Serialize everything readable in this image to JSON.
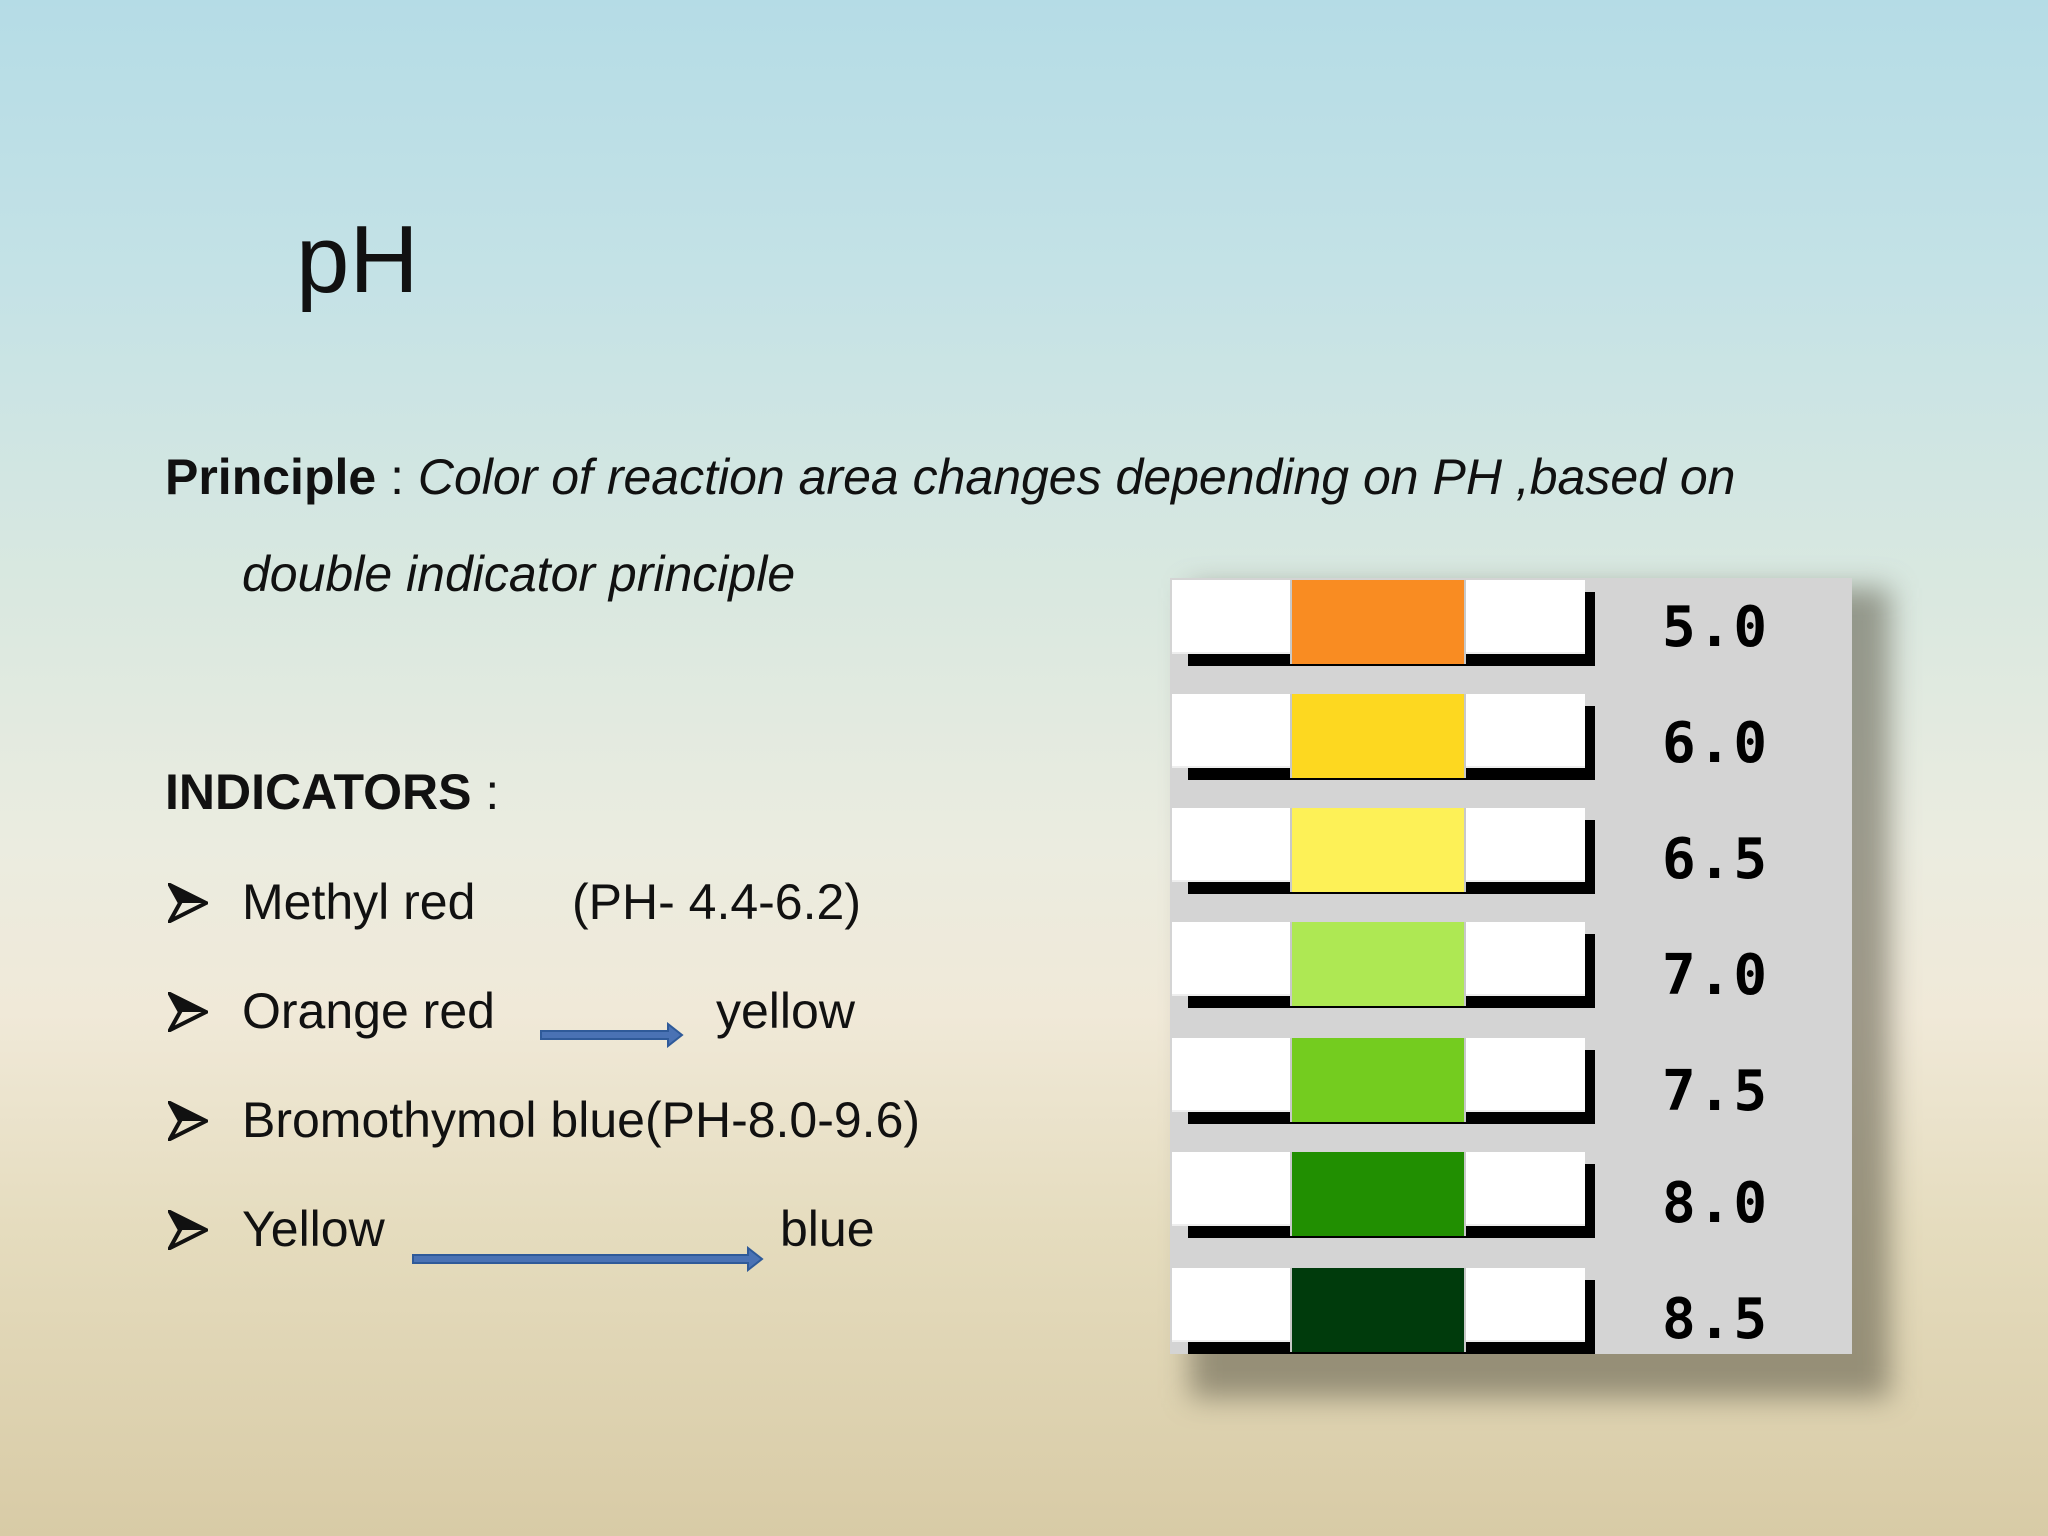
{
  "title": "pH",
  "principle": {
    "label": "Principle",
    "separator": " : ",
    "text_line1": "Color of reaction area changes depending on PH ,based on",
    "text_line2": "double indicator principle"
  },
  "indicators": {
    "label": "INDICATORS",
    "separator": " :",
    "items": [
      {
        "left": "Methyl red",
        "right": "(PH- 4.4-6.2)",
        "arrow": false
      },
      {
        "left": "Orange red",
        "right": "yellow",
        "arrow": true
      },
      {
        "left": "Bromothymol blue(PH-8.0-9.6)",
        "right": "",
        "arrow": false
      },
      {
        "left": "Yellow",
        "right": "blue",
        "arrow": true
      }
    ],
    "bullet_icon": "arrowhead-bullet-icon",
    "arrow_color": "#3f6db0"
  },
  "ph_chart": {
    "rows": [
      {
        "ph": "5.0",
        "color": "#f98c22"
      },
      {
        "ph": "6.0",
        "color": "#fdd820"
      },
      {
        "ph": "6.5",
        "color": "#fdf157"
      },
      {
        "ph": "7.0",
        "color": "#aee853"
      },
      {
        "ph": "7.5",
        "color": "#74cc1f"
      },
      {
        "ph": "8.0",
        "color": "#218f01"
      },
      {
        "ph": "8.5",
        "color": "#003b0c"
      }
    ]
  }
}
